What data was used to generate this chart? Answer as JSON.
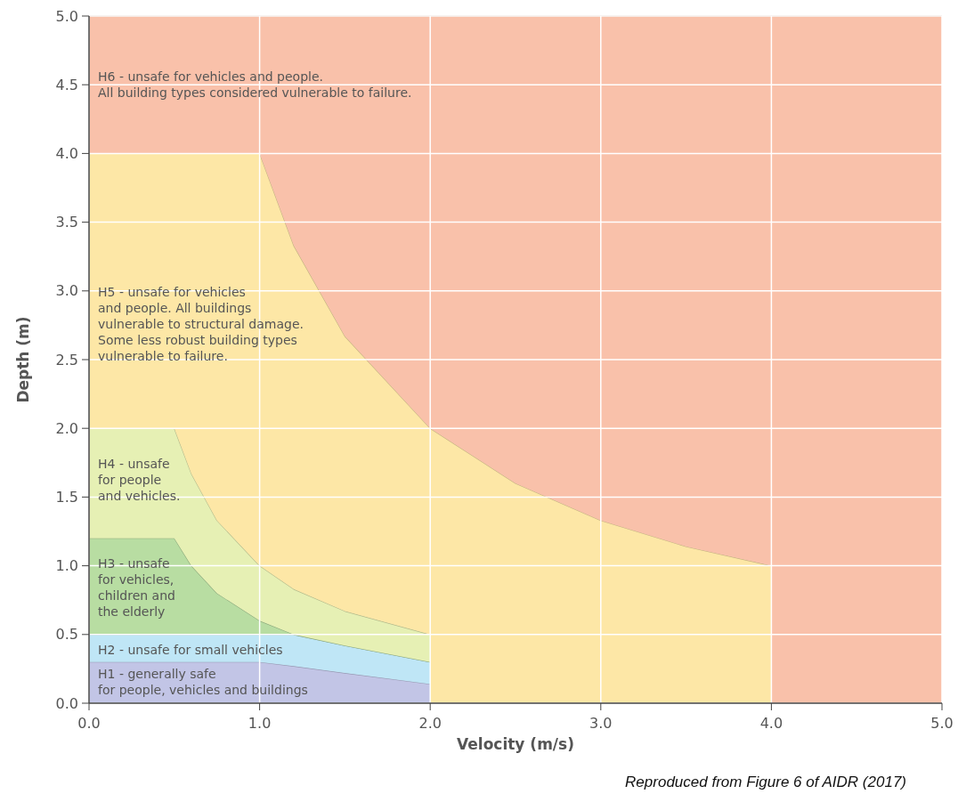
{
  "chart_data": {
    "type": "area",
    "stacked": true,
    "xlabel": "Velocity (m/s)",
    "ylabel": "Depth (m)",
    "xlim": [
      0,
      5
    ],
    "ylim": [
      0,
      5
    ],
    "xticks": [
      {
        "value": 0,
        "label": "0.0"
      },
      {
        "value": 1,
        "label": "1.0"
      },
      {
        "value": 2,
        "label": "2.0"
      },
      {
        "value": 3,
        "label": "3.0"
      },
      {
        "value": 4,
        "label": "4.0"
      },
      {
        "value": 5,
        "label": "5.0"
      }
    ],
    "yticks": [
      {
        "value": 0,
        "label": "0.0"
      },
      0.5,
      {
        "value": 1,
        "label": "1.0"
      },
      1.5,
      {
        "value": 2,
        "label": "2.0"
      },
      2.5,
      {
        "value": 3,
        "label": "3.0"
      },
      3.5,
      {
        "value": 4,
        "label": "4.0"
      },
      4.5,
      {
        "value": 5,
        "label": "5.0"
      }
    ],
    "grid": true,
    "x": [
      0,
      0.5,
      0.6,
      0.75,
      1,
      1.2,
      1.5,
      2,
      2,
      2.5,
      3,
      3.5,
      4,
      4,
      5
    ],
    "series": [
      {
        "color": "#c2c5e6",
        "values": [
          0.3,
          0.3,
          0.3,
          0.3,
          0.3,
          0.27,
          0.22,
          0.14,
          0,
          0,
          0,
          0,
          0,
          0,
          0
        ]
      },
      {
        "color": "#bfe6f6",
        "values": [
          0.2,
          0.2,
          0.2,
          0.2,
          0.2,
          0.23,
          0.2,
          0.16,
          0,
          0,
          0,
          0,
          0,
          0,
          0
        ]
      },
      {
        "color": "#b8dda2",
        "values": [
          0.7,
          0.7,
          0.5,
          0.3,
          0.1,
          0,
          0,
          0,
          0,
          0,
          0,
          0,
          0,
          0,
          0
        ]
      },
      {
        "color": "#e6f0b4",
        "values": [
          0.8,
          0.8,
          0.67,
          0.53,
          0.4,
          0.33,
          0.25,
          0.2,
          0,
          0,
          0,
          0,
          0,
          0,
          0
        ]
      },
      {
        "color": "#fde7a6",
        "values": [
          2,
          2,
          2.33,
          2.67,
          3,
          2.5,
          2,
          1.5,
          2,
          1.6,
          1.33,
          1.14,
          1,
          0,
          0
        ]
      },
      {
        "color": "#f9c1aa",
        "values": [
          1,
          1,
          1,
          1,
          1,
          1.67,
          2.33,
          3,
          3,
          3.4,
          3.67,
          3.86,
          4,
          5,
          5
        ]
      }
    ],
    "annotations": [
      "H1 - generally safe\nfor people, vehicles and buildings",
      "H2 - unsafe for small vehicles",
      "H3 - unsafe\nfor vehicles,\nchildren and\nthe elderly",
      "H4 - unsafe\nfor people\nand vehicles.",
      "H5 - unsafe for vehicles\nand people. All buildings\nvulnerable to structural damage.\nSome less robust building types\nvulnerable to failure.",
      "H6 - unsafe for vehicles and people.\nAll building types considered vulnerable to failure.",
      "Reproduced from Figure 6 of AIDR (2017)"
    ]
  }
}
